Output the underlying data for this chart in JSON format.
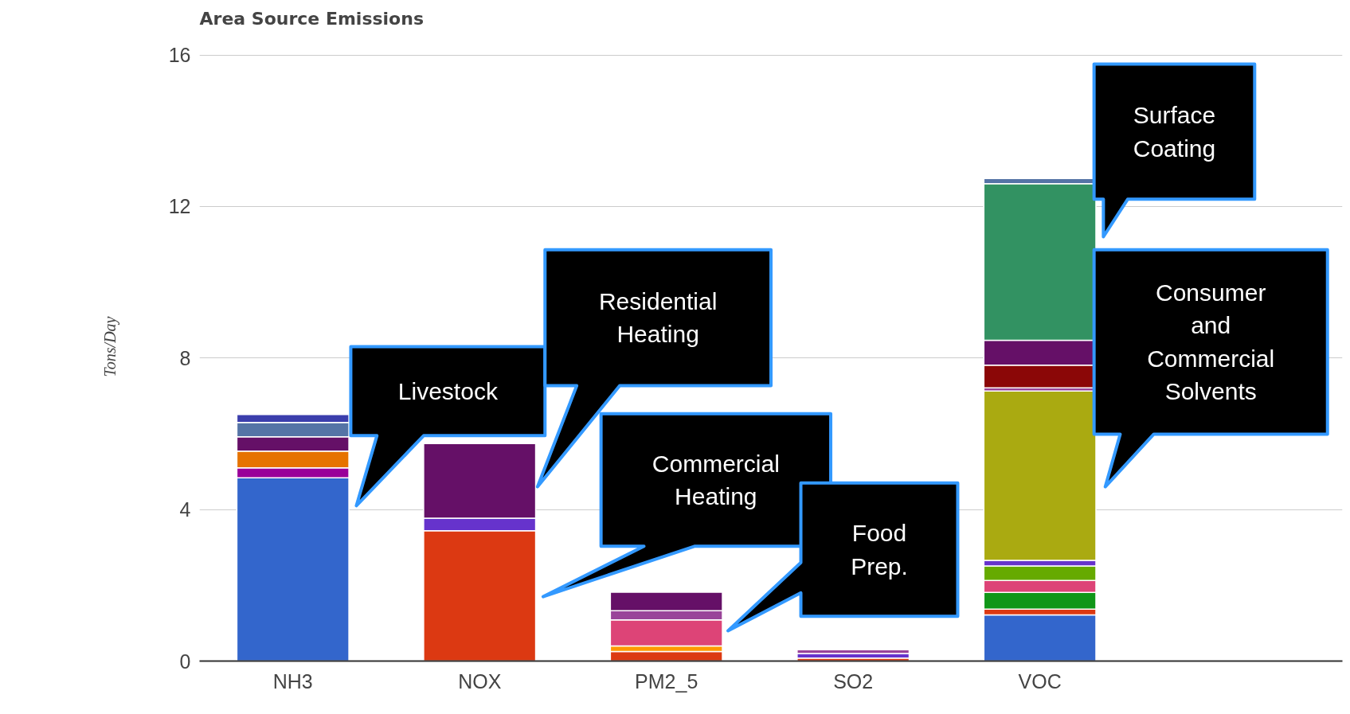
{
  "chart_data": {
    "type": "bar",
    "stacked": true,
    "title": "Area Source Emissions",
    "ylabel": "Tons/Day",
    "categories": [
      "NH3",
      "NOX",
      "PM2_5",
      "SO2",
      "VOC"
    ],
    "ylim": [
      0,
      16
    ],
    "yticks": [
      0,
      4,
      8,
      12,
      16
    ],
    "grid": "y",
    "series": [
      {
        "color": "#3366cc",
        "values": [
          4.84,
          null,
          null,
          null,
          1.22
        ]
      },
      {
        "color": "#dc3912",
        "values": [
          null,
          3.44,
          0.25,
          0.08,
          0.15
        ]
      },
      {
        "color": "#ff9900",
        "values": [
          null,
          null,
          0.15,
          null,
          null
        ]
      },
      {
        "color": "#109618",
        "values": [
          null,
          null,
          null,
          null,
          0.44
        ]
      },
      {
        "color": "#990099",
        "values": [
          0.26,
          null,
          null,
          null,
          null
        ]
      },
      {
        "color": "#e67300",
        "values": [
          0.44,
          null,
          null,
          null,
          null
        ]
      },
      {
        "color": "#dd4477",
        "values": [
          null,
          null,
          0.69,
          null,
          0.32
        ]
      },
      {
        "color": "#66aa00",
        "values": [
          null,
          null,
          null,
          null,
          0.38
        ]
      },
      {
        "color": "#6633cc",
        "values": [
          null,
          0.33,
          null,
          0.12,
          0.15
        ]
      },
      {
        "color": "#aaaa11",
        "values": [
          null,
          null,
          null,
          null,
          4.47
        ]
      },
      {
        "color": "#994499",
        "values": [
          null,
          null,
          0.24,
          0.1,
          0.08
        ]
      },
      {
        "color": "#8b0707",
        "values": [
          null,
          null,
          null,
          null,
          0.6
        ]
      },
      {
        "color": "#651067",
        "values": [
          0.38,
          1.97,
          0.49,
          null,
          0.66
        ]
      },
      {
        "color": "#329262",
        "values": [
          null,
          null,
          null,
          null,
          4.13
        ]
      },
      {
        "color": "#5574a6",
        "values": [
          0.38,
          null,
          null,
          null,
          0.14
        ]
      },
      {
        "color": "#3b3eac",
        "values": [
          0.21,
          null,
          null,
          null,
          null
        ]
      }
    ],
    "annotations": [
      "Livestock",
      "Residential Heating",
      "Commercial Heating",
      "Food Prep.",
      "Surface Coating",
      "Consumer and Commercial Solvents"
    ]
  }
}
